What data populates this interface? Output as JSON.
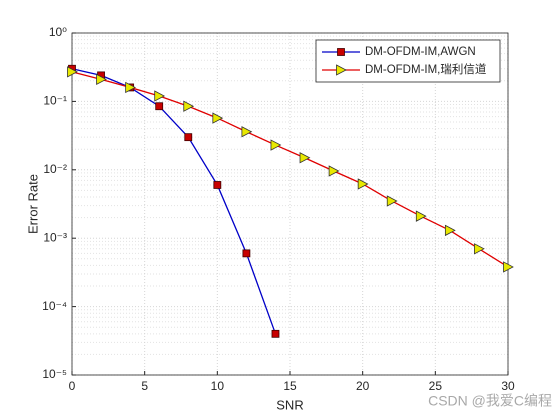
{
  "chart_data": {
    "type": "line",
    "xlabel": "SNR",
    "ylabel": "Error Rate",
    "log_y": true,
    "grid": true,
    "minor_grid": true,
    "legend_position": "northeast",
    "xlim": [
      0,
      30
    ],
    "xticks": [
      0,
      5,
      10,
      15,
      20,
      25,
      30
    ],
    "ylim": [
      1e-05,
      1
    ],
    "yticks": [
      {
        "value": 1e-05,
        "label": "10⁻⁵"
      },
      {
        "value": 0.0001,
        "label": "10⁻⁴"
      },
      {
        "value": 0.001,
        "label": "10⁻³"
      },
      {
        "value": 0.01,
        "label": "10⁻²"
      },
      {
        "value": 0.1,
        "label": "10⁻¹"
      },
      {
        "value": 1,
        "label": "10⁰"
      }
    ],
    "series": [
      {
        "name": "DM-OFDM-IM,AWGN",
        "color": "#0000c8",
        "marker": "square",
        "marker_color": "#c80000",
        "x": [
          0,
          2,
          4,
          6,
          8,
          10,
          12,
          14
        ],
        "values": [
          0.3,
          0.24,
          0.16,
          0.085,
          0.03,
          0.006,
          0.0006,
          4e-05
        ]
      },
      {
        "name": "DM-OFDM-IM,瑞利信道",
        "color": "#e00000",
        "marker": "triangle-right",
        "marker_color": "#e8e800",
        "x": [
          0,
          2,
          4,
          6,
          8,
          10,
          12,
          14,
          16,
          18,
          20,
          22,
          24,
          26,
          28,
          30
        ],
        "values": [
          0.27,
          0.21,
          0.16,
          0.12,
          0.085,
          0.057,
          0.036,
          0.023,
          0.015,
          0.0096,
          0.0062,
          0.0035,
          0.0021,
          0.0013,
          0.0007,
          0.00038
        ]
      }
    ],
    "watermark": "CSDN @我爱C编程"
  }
}
